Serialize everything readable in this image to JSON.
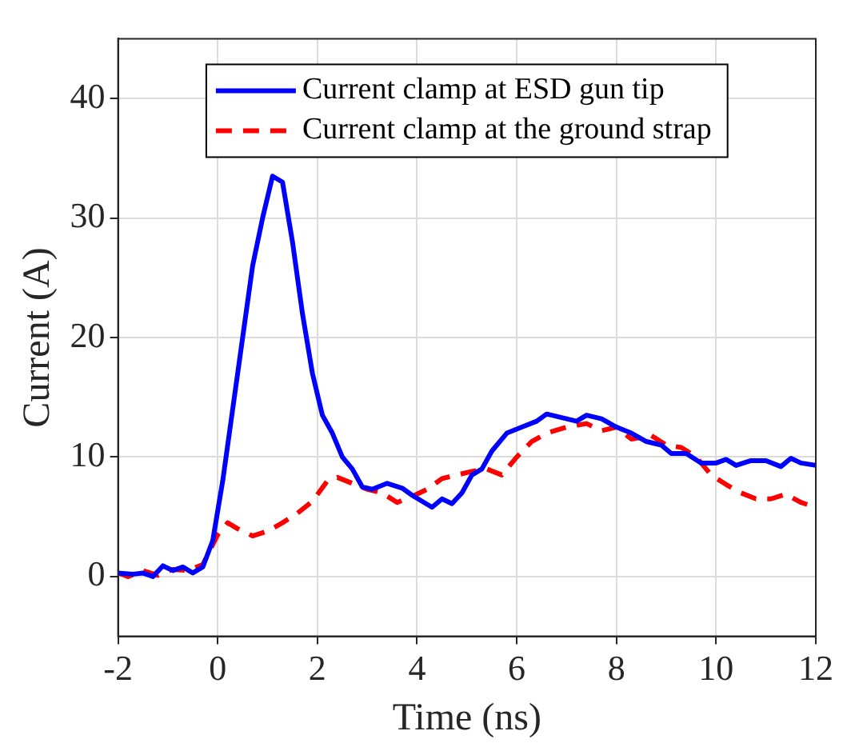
{
  "chart_data": {
    "type": "line",
    "xlabel": "Time (ns)",
    "ylabel": "Current (A)",
    "xlim": [
      -2,
      12
    ],
    "xticks": [
      -2,
      0,
      2,
      4,
      6,
      8,
      10,
      12
    ],
    "ylim": [
      -5,
      45
    ],
    "yticks": [
      0,
      10,
      20,
      30,
      40
    ],
    "grid": true,
    "legend": "top",
    "marker": "none",
    "series": [
      {
        "name": "Current clamp at ESD gun tip",
        "color": "#0000ff",
        "line_style": "solid",
        "x": [
          -2,
          -1.7,
          -1.5,
          -1.3,
          -1.1,
          -0.9,
          -0.7,
          -0.5,
          -0.3,
          -0.1,
          0.1,
          0.3,
          0.5,
          0.7,
          0.9,
          1.1,
          1.3,
          1.5,
          1.7,
          1.9,
          2.1,
          2.3,
          2.5,
          2.7,
          2.9,
          3.1,
          3.4,
          3.7,
          3.9,
          4.1,
          4.3,
          4.5,
          4.7,
          4.9,
          5.1,
          5.3,
          5.5,
          5.8,
          6.1,
          6.4,
          6.6,
          6.9,
          7.2,
          7.4,
          7.7,
          8,
          8.3,
          8.6,
          8.9,
          9.1,
          9.4,
          9.7,
          10,
          10.2,
          10.4,
          10.7,
          11,
          11.3,
          11.5,
          11.7,
          12
        ],
        "values": [
          0.3,
          0.2,
          0.3,
          0,
          0.9,
          0.5,
          0.8,
          0.3,
          0.8,
          3,
          8,
          14,
          20,
          26,
          30,
          33.5,
          33,
          28,
          22,
          17,
          13.5,
          12,
          10,
          9,
          7.5,
          7.3,
          7.8,
          7.4,
          6.8,
          6.3,
          5.8,
          6.5,
          6.1,
          7,
          8.5,
          9,
          10.5,
          12,
          12.5,
          13,
          13.6,
          13.3,
          13,
          13.5,
          13.2,
          12.5,
          12,
          11.3,
          11,
          10.3,
          10.3,
          9.5,
          9.5,
          9.8,
          9.3,
          9.7,
          9.7,
          9.2,
          9.9,
          9.5,
          9.3
        ]
      },
      {
        "name": "Current clamp at the ground strap",
        "color": "#ff0000",
        "line_style": "dashed",
        "x": [
          -2,
          -1.8,
          -1.5,
          -1.2,
          -0.9,
          -0.6,
          -0.3,
          0,
          0.2,
          0.4,
          0.7,
          1,
          1.3,
          1.6,
          1.9,
          2.2,
          2.4,
          2.7,
          3,
          3.3,
          3.6,
          3.9,
          4.2,
          4.5,
          4.8,
          5.1,
          5.4,
          5.7,
          6,
          6.3,
          6.6,
          7,
          7.4,
          7.7,
          8,
          8.3,
          8.7,
          9,
          9.3,
          9.6,
          9.9,
          10.2,
          10.5,
          10.8,
          11.1,
          11.4,
          11.7,
          12
        ],
        "values": [
          0.3,
          0,
          0.5,
          0.1,
          0.6,
          0.5,
          1,
          3.5,
          4.5,
          4,
          3.4,
          3.8,
          4.5,
          5.3,
          6.3,
          8,
          8.3,
          7.8,
          7.3,
          7,
          6.2,
          6.7,
          7.3,
          8.2,
          8.5,
          8.8,
          9,
          8.5,
          10,
          11.3,
          12,
          12.5,
          12.8,
          12.2,
          12.5,
          11.5,
          11.8,
          11,
          10.8,
          10,
          8.5,
          7.7,
          7,
          6.5,
          6.5,
          6.9,
          6.2,
          5.8
        ]
      }
    ]
  }
}
